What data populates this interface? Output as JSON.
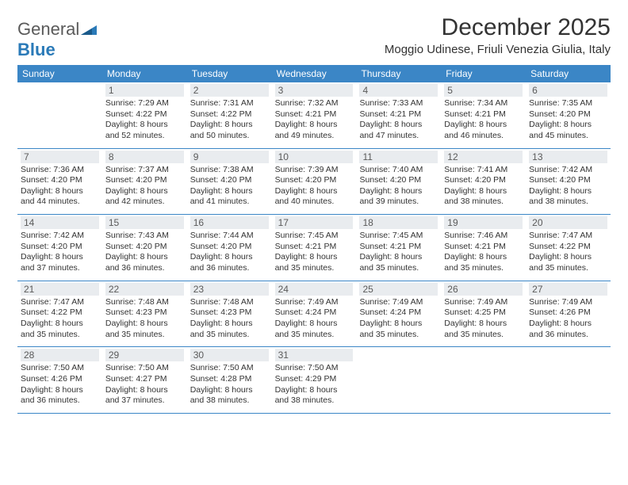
{
  "logo": {
    "text1": "General",
    "text2": "Blue"
  },
  "title": "December 2025",
  "location": "Moggio Udinese, Friuli Venezia Giulia, Italy",
  "colors": {
    "header_bg": "#3b86c6",
    "daynum_bg": "#e9ecef",
    "border": "#3b86c6",
    "text": "#333333",
    "logo_gray": "#5a5a5a",
    "logo_blue": "#2a7ab8"
  },
  "dayNames": [
    "Sunday",
    "Monday",
    "Tuesday",
    "Wednesday",
    "Thursday",
    "Friday",
    "Saturday"
  ],
  "weeks": [
    [
      null,
      {
        "n": "1",
        "sr": "Sunrise: 7:29 AM",
        "ss": "Sunset: 4:22 PM",
        "dl": "Daylight: 8 hours and 52 minutes."
      },
      {
        "n": "2",
        "sr": "Sunrise: 7:31 AM",
        "ss": "Sunset: 4:22 PM",
        "dl": "Daylight: 8 hours and 50 minutes."
      },
      {
        "n": "3",
        "sr": "Sunrise: 7:32 AM",
        "ss": "Sunset: 4:21 PM",
        "dl": "Daylight: 8 hours and 49 minutes."
      },
      {
        "n": "4",
        "sr": "Sunrise: 7:33 AM",
        "ss": "Sunset: 4:21 PM",
        "dl": "Daylight: 8 hours and 47 minutes."
      },
      {
        "n": "5",
        "sr": "Sunrise: 7:34 AM",
        "ss": "Sunset: 4:21 PM",
        "dl": "Daylight: 8 hours and 46 minutes."
      },
      {
        "n": "6",
        "sr": "Sunrise: 7:35 AM",
        "ss": "Sunset: 4:20 PM",
        "dl": "Daylight: 8 hours and 45 minutes."
      }
    ],
    [
      {
        "n": "7",
        "sr": "Sunrise: 7:36 AM",
        "ss": "Sunset: 4:20 PM",
        "dl": "Daylight: 8 hours and 44 minutes."
      },
      {
        "n": "8",
        "sr": "Sunrise: 7:37 AM",
        "ss": "Sunset: 4:20 PM",
        "dl": "Daylight: 8 hours and 42 minutes."
      },
      {
        "n": "9",
        "sr": "Sunrise: 7:38 AM",
        "ss": "Sunset: 4:20 PM",
        "dl": "Daylight: 8 hours and 41 minutes."
      },
      {
        "n": "10",
        "sr": "Sunrise: 7:39 AM",
        "ss": "Sunset: 4:20 PM",
        "dl": "Daylight: 8 hours and 40 minutes."
      },
      {
        "n": "11",
        "sr": "Sunrise: 7:40 AM",
        "ss": "Sunset: 4:20 PM",
        "dl": "Daylight: 8 hours and 39 minutes."
      },
      {
        "n": "12",
        "sr": "Sunrise: 7:41 AM",
        "ss": "Sunset: 4:20 PM",
        "dl": "Daylight: 8 hours and 38 minutes."
      },
      {
        "n": "13",
        "sr": "Sunrise: 7:42 AM",
        "ss": "Sunset: 4:20 PM",
        "dl": "Daylight: 8 hours and 38 minutes."
      }
    ],
    [
      {
        "n": "14",
        "sr": "Sunrise: 7:42 AM",
        "ss": "Sunset: 4:20 PM",
        "dl": "Daylight: 8 hours and 37 minutes."
      },
      {
        "n": "15",
        "sr": "Sunrise: 7:43 AM",
        "ss": "Sunset: 4:20 PM",
        "dl": "Daylight: 8 hours and 36 minutes."
      },
      {
        "n": "16",
        "sr": "Sunrise: 7:44 AM",
        "ss": "Sunset: 4:20 PM",
        "dl": "Daylight: 8 hours and 36 minutes."
      },
      {
        "n": "17",
        "sr": "Sunrise: 7:45 AM",
        "ss": "Sunset: 4:21 PM",
        "dl": "Daylight: 8 hours and 35 minutes."
      },
      {
        "n": "18",
        "sr": "Sunrise: 7:45 AM",
        "ss": "Sunset: 4:21 PM",
        "dl": "Daylight: 8 hours and 35 minutes."
      },
      {
        "n": "19",
        "sr": "Sunrise: 7:46 AM",
        "ss": "Sunset: 4:21 PM",
        "dl": "Daylight: 8 hours and 35 minutes."
      },
      {
        "n": "20",
        "sr": "Sunrise: 7:47 AM",
        "ss": "Sunset: 4:22 PM",
        "dl": "Daylight: 8 hours and 35 minutes."
      }
    ],
    [
      {
        "n": "21",
        "sr": "Sunrise: 7:47 AM",
        "ss": "Sunset: 4:22 PM",
        "dl": "Daylight: 8 hours and 35 minutes."
      },
      {
        "n": "22",
        "sr": "Sunrise: 7:48 AM",
        "ss": "Sunset: 4:23 PM",
        "dl": "Daylight: 8 hours and 35 minutes."
      },
      {
        "n": "23",
        "sr": "Sunrise: 7:48 AM",
        "ss": "Sunset: 4:23 PM",
        "dl": "Daylight: 8 hours and 35 minutes."
      },
      {
        "n": "24",
        "sr": "Sunrise: 7:49 AM",
        "ss": "Sunset: 4:24 PM",
        "dl": "Daylight: 8 hours and 35 minutes."
      },
      {
        "n": "25",
        "sr": "Sunrise: 7:49 AM",
        "ss": "Sunset: 4:24 PM",
        "dl": "Daylight: 8 hours and 35 minutes."
      },
      {
        "n": "26",
        "sr": "Sunrise: 7:49 AM",
        "ss": "Sunset: 4:25 PM",
        "dl": "Daylight: 8 hours and 35 minutes."
      },
      {
        "n": "27",
        "sr": "Sunrise: 7:49 AM",
        "ss": "Sunset: 4:26 PM",
        "dl": "Daylight: 8 hours and 36 minutes."
      }
    ],
    [
      {
        "n": "28",
        "sr": "Sunrise: 7:50 AM",
        "ss": "Sunset: 4:26 PM",
        "dl": "Daylight: 8 hours and 36 minutes."
      },
      {
        "n": "29",
        "sr": "Sunrise: 7:50 AM",
        "ss": "Sunset: 4:27 PM",
        "dl": "Daylight: 8 hours and 37 minutes."
      },
      {
        "n": "30",
        "sr": "Sunrise: 7:50 AM",
        "ss": "Sunset: 4:28 PM",
        "dl": "Daylight: 8 hours and 38 minutes."
      },
      {
        "n": "31",
        "sr": "Sunrise: 7:50 AM",
        "ss": "Sunset: 4:29 PM",
        "dl": "Daylight: 8 hours and 38 minutes."
      },
      null,
      null,
      null
    ]
  ]
}
